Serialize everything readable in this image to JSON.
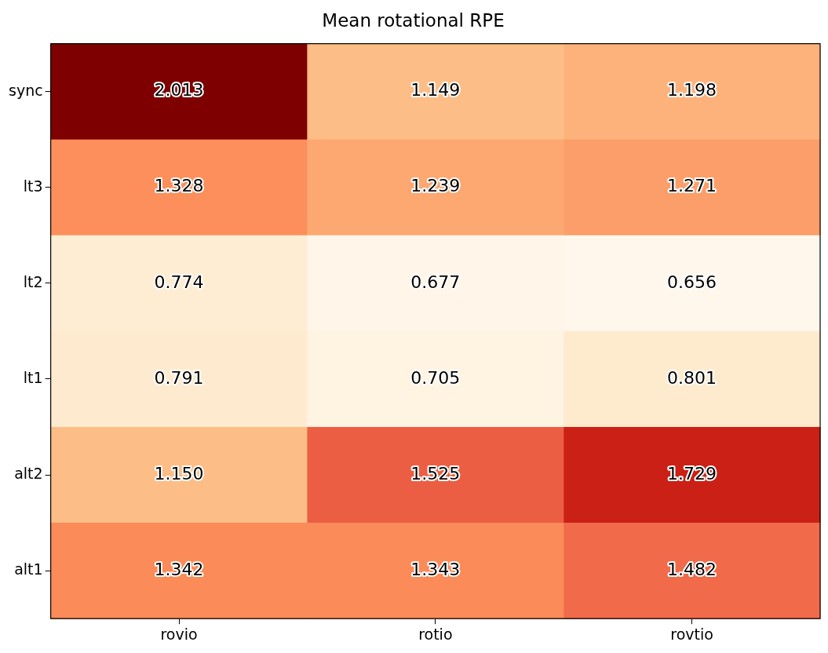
{
  "chart_data": {
    "type": "heatmap",
    "title": "Mean rotational RPE",
    "categories": [
      "rovio",
      "rotio",
      "rovtio"
    ],
    "y_categories": [
      "sync",
      "lt3",
      "lt2",
      "lt1",
      "alt2",
      "alt1"
    ],
    "cells": [
      [
        2.013,
        1.149,
        1.198
      ],
      [
        1.328,
        1.239,
        1.271
      ],
      [
        0.774,
        0.677,
        0.656
      ],
      [
        0.791,
        0.705,
        0.801
      ],
      [
        1.15,
        1.525,
        1.729
      ],
      [
        1.342,
        1.343,
        1.482
      ]
    ],
    "cell_labels": [
      [
        "2.013",
        "1.149",
        "1.198"
      ],
      [
        "1.328",
        "1.239",
        "1.271"
      ],
      [
        "0.774",
        "0.677",
        "0.656"
      ],
      [
        "0.791",
        "0.705",
        "0.801"
      ],
      [
        "1.150",
        "1.525",
        "1.729"
      ],
      [
        "1.342",
        "1.343",
        "1.482"
      ]
    ],
    "data_labels": true,
    "grid": false
  }
}
